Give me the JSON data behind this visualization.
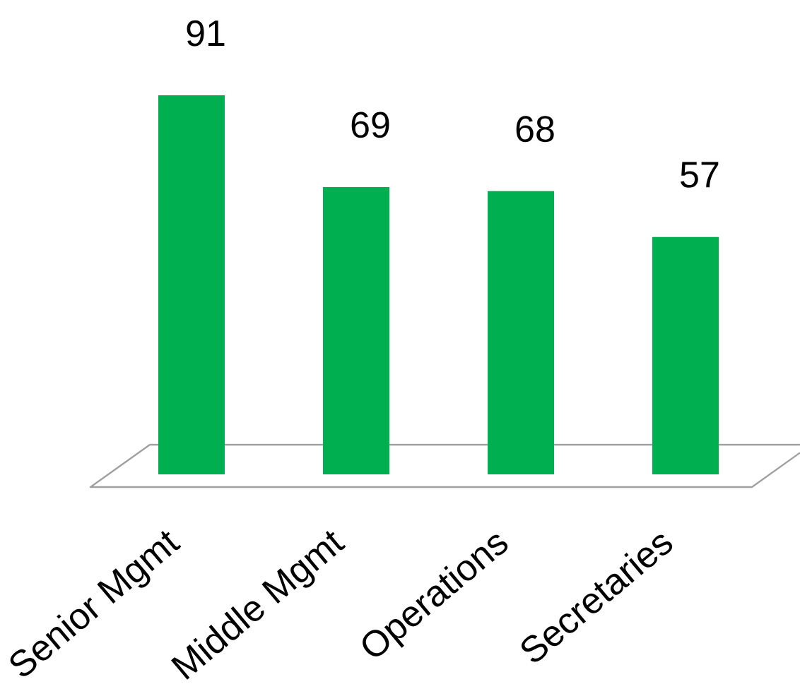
{
  "chart_data": {
    "type": "bar",
    "categories": [
      "Senior Mgmt",
      "Middle Mgmt",
      "Operations",
      "Secretaries"
    ],
    "values": [
      91,
      69,
      68,
      57
    ],
    "color": "#00b050",
    "data_labels": true
  }
}
